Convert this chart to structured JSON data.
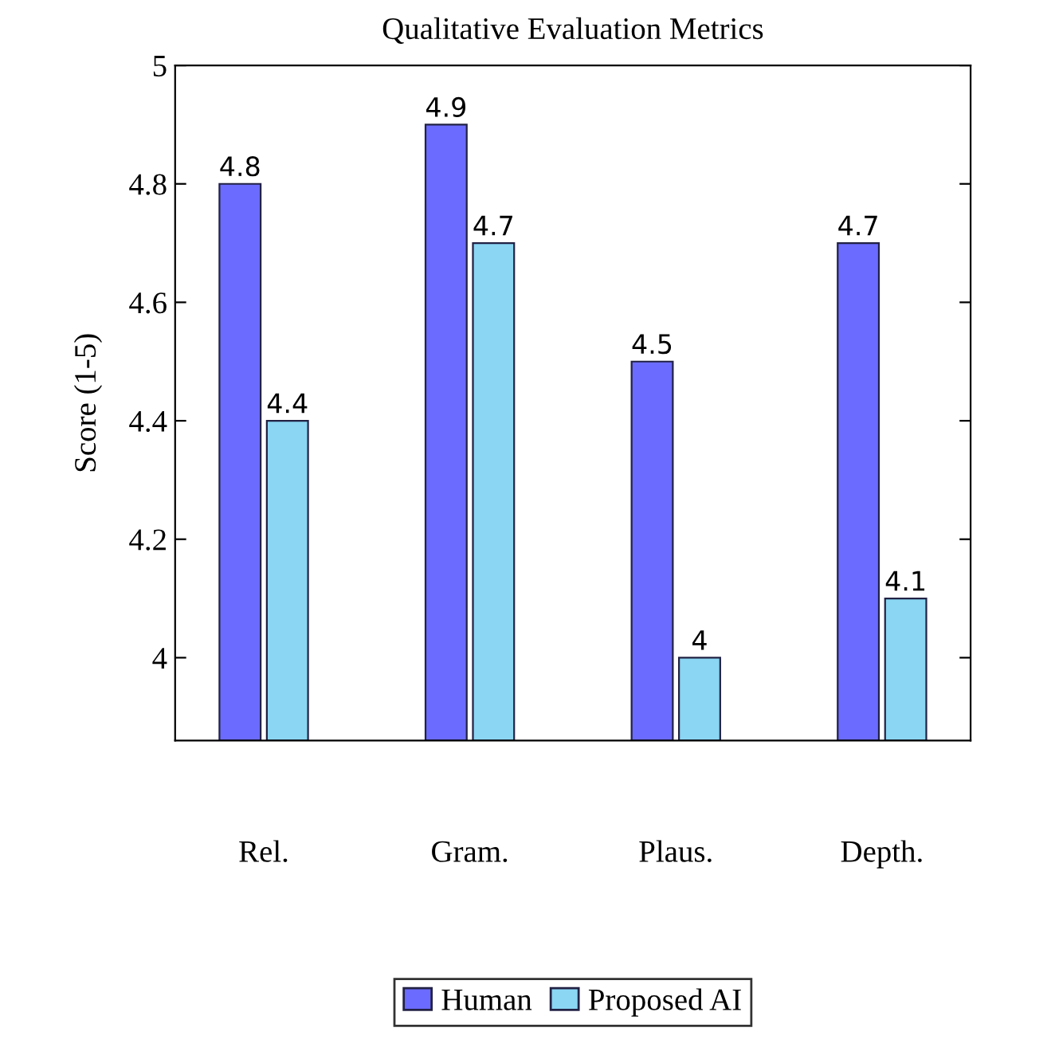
{
  "chart_data": {
    "type": "bar",
    "title": "Qualitative Evaluation Metrics",
    "ylabel": "Score (1-5)",
    "categories": [
      "Rel.",
      "Gram.",
      "Plaus.",
      "Depth."
    ],
    "series": [
      {
        "name": "Human",
        "color": "#6b6bff",
        "values": [
          4.8,
          4.9,
          4.5,
          4.7
        ]
      },
      {
        "name": "Proposed AI",
        "color": "#8ad6f3",
        "values": [
          4.4,
          4.7,
          4.0,
          4.1
        ]
      }
    ],
    "ylim": [
      3.86,
      5
    ],
    "yticks": [
      4,
      4.2,
      4.4,
      4.6,
      4.8,
      5
    ],
    "data_labels": true,
    "legend": "bottom",
    "grid": false
  }
}
